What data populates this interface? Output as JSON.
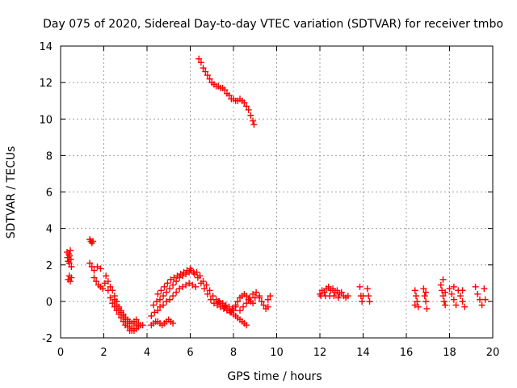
{
  "chart_data": {
    "type": "scatter",
    "title": "Day 075 of 2020, Sidereal Day-to-day VTEC variation (SDTVAR) for receiver tmbo",
    "xlabel": "GPS time / hours",
    "ylabel": "SDTVAR / TECUs",
    "xlim": [
      0,
      20
    ],
    "ylim": [
      -2,
      14
    ],
    "x_ticks": [
      0,
      2,
      4,
      6,
      8,
      10,
      12,
      14,
      16,
      18,
      20
    ],
    "y_ticks": [
      -2,
      0,
      2,
      4,
      6,
      8,
      10,
      12,
      14
    ],
    "x_tick_labels": [
      "0",
      "2",
      "4",
      "6",
      "8",
      "10",
      "12",
      "14",
      "16",
      "18",
      "20"
    ],
    "y_tick_labels": [
      "-2",
      "0",
      "2",
      "4",
      "6",
      "8",
      "10",
      "12",
      "14"
    ],
    "grid": true,
    "marker": "+",
    "series": [
      {
        "name": "SDTVAR",
        "color": "#ff0000",
        "points": [
          [
            0.3,
            2.7
          ],
          [
            0.32,
            2.4
          ],
          [
            0.35,
            2.2
          ],
          [
            0.38,
            2.6
          ],
          [
            0.4,
            2.1
          ],
          [
            0.42,
            2.5
          ],
          [
            0.45,
            2.8
          ],
          [
            0.48,
            2.3
          ],
          [
            0.5,
            1.9
          ],
          [
            0.35,
            1.2
          ],
          [
            0.4,
            1.4
          ],
          [
            0.45,
            1.1
          ],
          [
            0.5,
            1.3
          ],
          [
            1.35,
            3.4
          ],
          [
            1.4,
            3.3
          ],
          [
            1.45,
            3.2
          ],
          [
            1.5,
            3.3
          ],
          [
            1.35,
            2.1
          ],
          [
            1.45,
            1.9
          ],
          [
            1.55,
            1.7
          ],
          [
            1.7,
            1.9
          ],
          [
            1.85,
            1.8
          ],
          [
            1.55,
            1.3
          ],
          [
            1.65,
            1.1
          ],
          [
            1.75,
            0.9
          ],
          [
            1.85,
            0.8
          ],
          [
            1.95,
            0.7
          ],
          [
            2.05,
            1.0
          ],
          [
            2.1,
            1.4
          ],
          [
            2.2,
            1.1
          ],
          [
            2.3,
            0.8
          ],
          [
            2.4,
            0.6
          ],
          [
            2.5,
            0.3
          ],
          [
            2.6,
            0.0
          ],
          [
            2.7,
            -0.3
          ],
          [
            2.8,
            -0.6
          ],
          [
            2.9,
            -0.8
          ],
          [
            3.0,
            -1.0
          ],
          [
            3.1,
            -1.2
          ],
          [
            3.2,
            -1.4
          ],
          [
            3.3,
            -1.5
          ],
          [
            3.4,
            -1.6
          ],
          [
            3.5,
            -1.5
          ],
          [
            3.6,
            -1.4
          ],
          [
            3.7,
            -1.3
          ],
          [
            3.8,
            -1.3
          ],
          [
            2.2,
            0.6
          ],
          [
            2.3,
            0.2
          ],
          [
            2.4,
            -0.1
          ],
          [
            2.5,
            -0.3
          ],
          [
            2.6,
            -0.5
          ],
          [
            2.7,
            -0.7
          ],
          [
            2.8,
            -0.9
          ],
          [
            2.9,
            -1.1
          ],
          [
            3.0,
            -1.3
          ],
          [
            3.1,
            -1.4
          ],
          [
            3.2,
            -1.6
          ],
          [
            3.3,
            -1.6
          ],
          [
            3.4,
            -1.5
          ],
          [
            3.5,
            -1.3
          ],
          [
            3.6,
            -1.2
          ],
          [
            2.5,
            0.1
          ],
          [
            2.6,
            -0.2
          ],
          [
            2.7,
            -0.4
          ],
          [
            2.8,
            -0.5
          ],
          [
            2.9,
            -0.7
          ],
          [
            3.0,
            -0.9
          ],
          [
            3.1,
            -1.0
          ],
          [
            3.2,
            -1.1
          ],
          [
            3.3,
            -1.2
          ],
          [
            3.4,
            -1.1
          ],
          [
            3.5,
            -1.0
          ],
          [
            4.2,
            -1.3
          ],
          [
            4.3,
            -1.2
          ],
          [
            4.4,
            -1.1
          ],
          [
            4.5,
            -1.1
          ],
          [
            4.6,
            -1.2
          ],
          [
            4.7,
            -1.3
          ],
          [
            4.8,
            -1.2
          ],
          [
            4.9,
            -1.1
          ],
          [
            5.0,
            -1.0
          ],
          [
            5.1,
            -1.1
          ],
          [
            5.2,
            -1.2
          ],
          [
            4.2,
            -0.8
          ],
          [
            4.35,
            -0.6
          ],
          [
            4.5,
            -0.5
          ],
          [
            4.6,
            -0.3
          ],
          [
            4.75,
            -0.2
          ],
          [
            4.9,
            0.0
          ],
          [
            5.05,
            0.1
          ],
          [
            5.2,
            0.3
          ],
          [
            5.35,
            0.5
          ],
          [
            5.5,
            0.7
          ],
          [
            5.65,
            0.8
          ],
          [
            5.8,
            0.9
          ],
          [
            5.95,
            1.0
          ],
          [
            6.1,
            0.9
          ],
          [
            6.25,
            0.8
          ],
          [
            4.3,
            -0.2
          ],
          [
            4.45,
            0.0
          ],
          [
            4.6,
            0.1
          ],
          [
            4.75,
            0.3
          ],
          [
            4.9,
            0.5
          ],
          [
            5.05,
            0.7
          ],
          [
            5.2,
            0.9
          ],
          [
            5.35,
            1.1
          ],
          [
            5.5,
            1.3
          ],
          [
            5.65,
            1.4
          ],
          [
            5.8,
            1.5
          ],
          [
            5.95,
            1.6
          ],
          [
            6.05,
            1.7
          ],
          [
            6.15,
            1.6
          ],
          [
            4.5,
            0.4
          ],
          [
            4.65,
            0.6
          ],
          [
            4.8,
            0.8
          ],
          [
            4.95,
            1.0
          ],
          [
            5.1,
            1.2
          ],
          [
            5.25,
            1.3
          ],
          [
            5.4,
            1.4
          ],
          [
            5.55,
            1.5
          ],
          [
            5.7,
            1.6
          ],
          [
            5.85,
            1.7
          ],
          [
            6.0,
            1.8
          ],
          [
            6.2,
            1.5
          ],
          [
            6.35,
            1.3
          ],
          [
            6.5,
            1.0
          ],
          [
            6.65,
            0.7
          ],
          [
            6.8,
            0.4
          ],
          [
            6.95,
            0.1
          ],
          [
            7.1,
            -0.1
          ],
          [
            7.25,
            -0.2
          ],
          [
            7.4,
            -0.3
          ],
          [
            7.55,
            -0.4
          ],
          [
            7.7,
            -0.5
          ],
          [
            7.85,
            -0.6
          ],
          [
            8.0,
            -0.5
          ],
          [
            6.3,
            1.6
          ],
          [
            6.45,
            1.4
          ],
          [
            6.6,
            1.1
          ],
          [
            6.75,
            0.9
          ],
          [
            6.9,
            0.6
          ],
          [
            7.05,
            0.3
          ],
          [
            7.2,
            0.1
          ],
          [
            7.35,
            0.0
          ],
          [
            7.5,
            -0.1
          ],
          [
            7.65,
            -0.2
          ],
          [
            7.8,
            -0.3
          ],
          [
            7.95,
            -0.4
          ],
          [
            8.1,
            -0.3
          ],
          [
            7.3,
            0.0
          ],
          [
            7.4,
            -0.1
          ],
          [
            7.5,
            -0.2
          ],
          [
            7.6,
            -0.3
          ],
          [
            7.7,
            -0.4
          ],
          [
            7.8,
            -0.5
          ],
          [
            7.9,
            -0.6
          ],
          [
            8.0,
            -0.7
          ],
          [
            8.1,
            -0.8
          ],
          [
            8.2,
            -0.9
          ],
          [
            8.3,
            -1.0
          ],
          [
            8.4,
            -1.1
          ],
          [
            8.5,
            -1.2
          ],
          [
            8.6,
            -1.3
          ],
          [
            8.1,
            -0.2
          ],
          [
            8.2,
            0.0
          ],
          [
            8.3,
            0.2
          ],
          [
            8.4,
            0.3
          ],
          [
            8.5,
            0.4
          ],
          [
            8.6,
            0.3
          ],
          [
            8.7,
            0.1
          ],
          [
            8.8,
            0.0
          ],
          [
            8.9,
            -0.1
          ],
          [
            9.0,
            0.2
          ],
          [
            8.3,
            -0.5
          ],
          [
            8.45,
            -0.3
          ],
          [
            8.6,
            -0.1
          ],
          [
            8.75,
            0.2
          ],
          [
            8.9,
            0.4
          ],
          [
            9.05,
            0.5
          ],
          [
            9.2,
            0.3
          ],
          [
            9.2,
            0.2
          ],
          [
            9.3,
            0.0
          ],
          [
            9.4,
            -0.2
          ],
          [
            9.5,
            -0.4
          ],
          [
            9.6,
            0.1
          ],
          [
            9.7,
            0.3
          ],
          [
            9.6,
            -0.3
          ],
          [
            6.4,
            13.3
          ],
          [
            6.5,
            13.1
          ],
          [
            6.6,
            12.8
          ],
          [
            6.7,
            12.6
          ],
          [
            6.8,
            12.4
          ],
          [
            6.9,
            12.2
          ],
          [
            7.0,
            12.0
          ],
          [
            7.1,
            11.9
          ],
          [
            7.2,
            11.8
          ],
          [
            7.3,
            11.8
          ],
          [
            7.4,
            11.7
          ],
          [
            7.5,
            11.7
          ],
          [
            7.6,
            11.6
          ],
          [
            7.7,
            11.4
          ],
          [
            7.8,
            11.3
          ],
          [
            7.9,
            11.1
          ],
          [
            8.0,
            11.1
          ],
          [
            8.1,
            11.0
          ],
          [
            8.2,
            11.0
          ],
          [
            8.3,
            11.1
          ],
          [
            8.4,
            11.0
          ],
          [
            8.5,
            10.9
          ],
          [
            8.6,
            10.7
          ],
          [
            8.7,
            10.5
          ],
          [
            8.8,
            10.2
          ],
          [
            8.9,
            9.9
          ],
          [
            8.95,
            9.7
          ],
          [
            12.0,
            0.4
          ],
          [
            12.1,
            0.6
          ],
          [
            12.2,
            0.5
          ],
          [
            12.3,
            0.7
          ],
          [
            12.4,
            0.8
          ],
          [
            12.5,
            0.6
          ],
          [
            12.6,
            0.7
          ],
          [
            12.7,
            0.5
          ],
          [
            12.8,
            0.6
          ],
          [
            12.9,
            0.4
          ],
          [
            13.0,
            0.5
          ],
          [
            13.1,
            0.3
          ],
          [
            13.2,
            0.2
          ],
          [
            13.3,
            0.3
          ],
          [
            12.05,
            0.3
          ],
          [
            12.25,
            0.3
          ],
          [
            12.45,
            0.3
          ],
          [
            12.65,
            0.3
          ],
          [
            12.85,
            0.2
          ],
          [
            13.85,
            0.8
          ],
          [
            13.9,
            0.3
          ],
          [
            13.95,
            0.0
          ],
          [
            14.0,
            0.3
          ],
          [
            14.2,
            0.7
          ],
          [
            14.25,
            0.3
          ],
          [
            14.3,
            0.0
          ],
          [
            16.4,
            0.6
          ],
          [
            16.45,
            0.3
          ],
          [
            16.5,
            0.0
          ],
          [
            16.55,
            -0.3
          ],
          [
            16.8,
            0.7
          ],
          [
            16.85,
            0.3
          ],
          [
            16.9,
            0.0
          ],
          [
            16.95,
            -0.4
          ],
          [
            16.4,
            -0.2
          ],
          [
            16.9,
            0.5
          ],
          [
            17.6,
            0.9
          ],
          [
            17.65,
            0.6
          ],
          [
            17.7,
            0.3
          ],
          [
            17.75,
            0.0
          ],
          [
            17.8,
            -0.2
          ],
          [
            17.7,
            1.2
          ],
          [
            17.8,
            0.5
          ],
          [
            18.0,
            0.7
          ],
          [
            18.1,
            0.4
          ],
          [
            18.2,
            0.1
          ],
          [
            18.3,
            -0.2
          ],
          [
            18.4,
            0.6
          ],
          [
            18.5,
            0.3
          ],
          [
            18.6,
            0.0
          ],
          [
            18.7,
            -0.3
          ],
          [
            18.2,
            0.8
          ],
          [
            18.6,
            0.6
          ],
          [
            19.2,
            0.8
          ],
          [
            19.3,
            0.4
          ],
          [
            19.4,
            0.1
          ],
          [
            19.5,
            -0.2
          ],
          [
            19.6,
            0.7
          ],
          [
            19.65,
            0.1
          ]
        ]
      }
    ]
  }
}
